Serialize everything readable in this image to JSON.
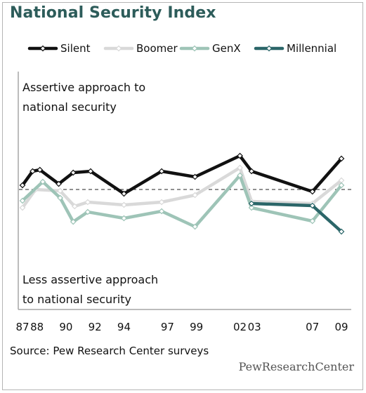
{
  "title": "National Security Index",
  "source": "Source: Pew Research Center surveys",
  "brand": "PewResearchCenter",
  "chart_data": {
    "type": "line",
    "title": "National Security Index",
    "xlabel": "",
    "ylabel": "",
    "ylim": [
      -1,
      1
    ],
    "baseline": 0,
    "grid": false,
    "legend": "top",
    "annotations": {
      "top": [
        "Assertive approach to",
        "national security"
      ],
      "bottom": [
        "Less assertive approach",
        "to national security"
      ]
    },
    "x_ticks": [
      {
        "x": 1987,
        "label": "87"
      },
      {
        "x": 1988,
        "label": "88"
      },
      {
        "x": 1990,
        "label": "90"
      },
      {
        "x": 1992,
        "label": "92"
      },
      {
        "x": 1994,
        "label": "94"
      },
      {
        "x": 1997,
        "label": "97"
      },
      {
        "x": 1999,
        "label": "99"
      },
      {
        "x": 2002,
        "label": "02"
      },
      {
        "x": 2003,
        "label": "03"
      },
      {
        "x": 2007,
        "label": "07"
      },
      {
        "x": 2009,
        "label": "09"
      }
    ],
    "series": [
      {
        "name": "Silent",
        "color": "#111111",
        "x": [
          1987,
          1987.7,
          1988.2,
          1989.5,
          1990.5,
          1991.7,
          1994,
          1996.6,
          1998.9,
          2002,
          2002.8,
          2007,
          2009
        ],
        "y": [
          0.06,
          0.26,
          0.28,
          0.08,
          0.24,
          0.26,
          -0.06,
          0.26,
          0.18,
          0.48,
          0.26,
          -0.03,
          0.44
        ]
      },
      {
        "name": "Boomer",
        "color": "#d9d9d9",
        "x": [
          1987,
          1987.9,
          1989.6,
          1990.6,
          1991.5,
          1994,
          1996.6,
          1998.9,
          2002,
          2002.8,
          2007,
          2009
        ],
        "y": [
          -0.26,
          0,
          -0.02,
          -0.24,
          -0.18,
          -0.22,
          -0.18,
          -0.08,
          0.31,
          -0.17,
          -0.2,
          0.13
        ]
      },
      {
        "name": "GenX",
        "color": "#9ec4b7",
        "x": [
          1987,
          1988.4,
          1989.6,
          1990.5,
          1991.5,
          1994,
          1996.6,
          1998.9,
          2002,
          2002.8,
          2007,
          2009
        ],
        "y": [
          -0.16,
          0.11,
          -0.12,
          -0.46,
          -0.32,
          -0.41,
          -0.31,
          -0.53,
          0.2,
          -0.26,
          -0.45,
          0.06
        ]
      },
      {
        "name": "Millennial",
        "color": "#2b6669",
        "x": [
          2002.8,
          2007,
          2009
        ],
        "y": [
          -0.2,
          -0.23,
          -0.6
        ]
      }
    ]
  }
}
